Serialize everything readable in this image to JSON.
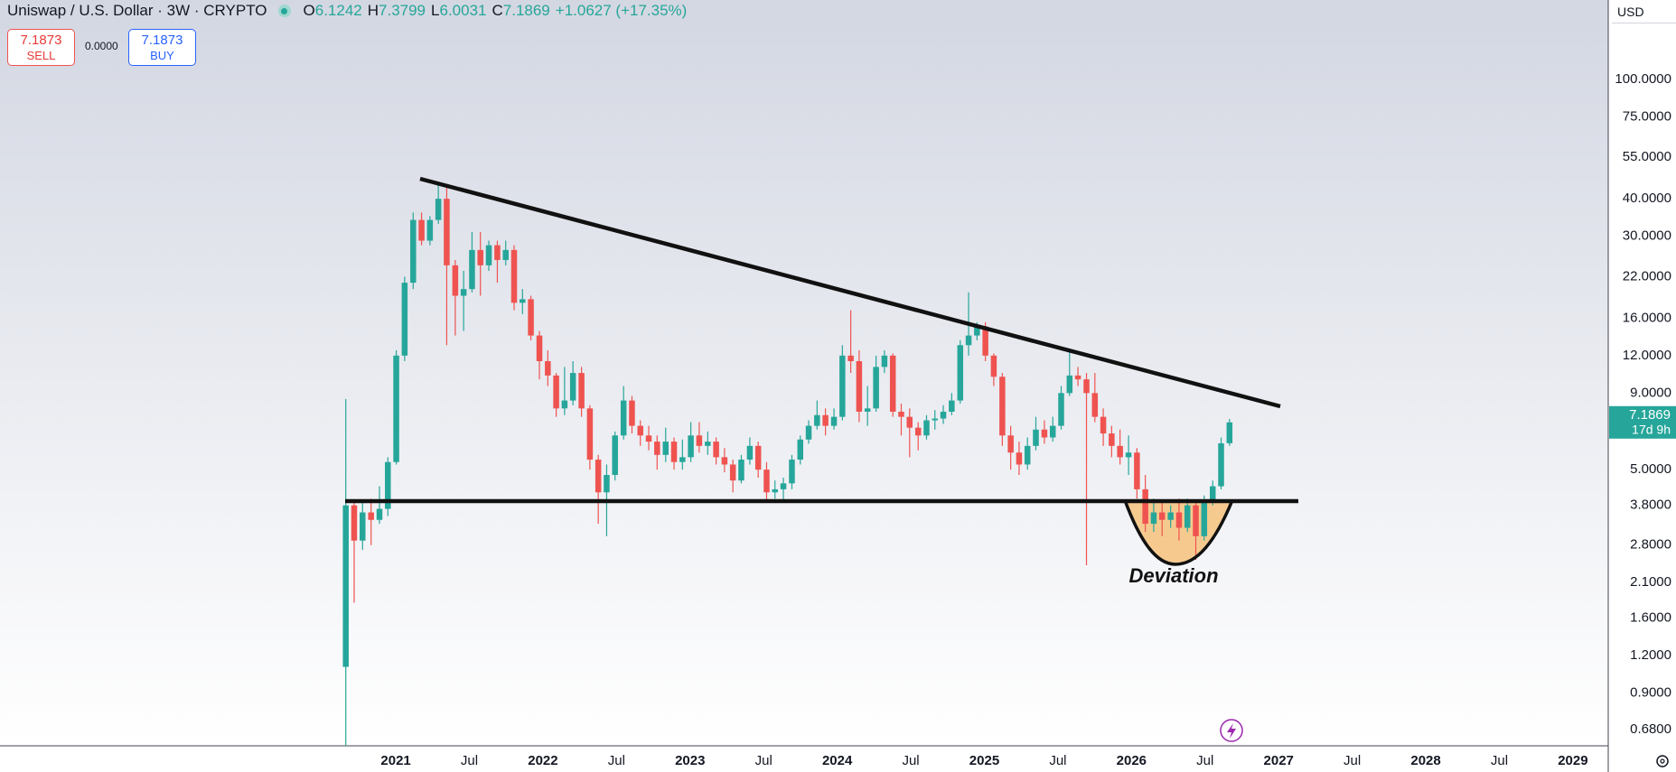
{
  "header": {
    "symbol": "Uniswap / U.S. Dollar · 3W · CRYPTO",
    "open_label": "O",
    "high_label": "H",
    "low_label": "L",
    "close_label": "C",
    "change": "+1.0627 (+17.35%)",
    "sell_price": 7.1873,
    "sell_label": "SELL",
    "spread": "0.0000",
    "buy_price": 7.1873,
    "buy_label": "BUY",
    "currency": "USD",
    "countdown": "17d 9h"
  },
  "chart_data": {
    "type": "candlestick",
    "x": [
      2020.66,
      2020.717,
      2020.774,
      2020.832,
      2020.889,
      2020.946,
      2021.003,
      2021.06,
      2021.118,
      2021.175,
      2021.232,
      2021.289,
      2021.346,
      2021.404,
      2021.461,
      2021.518,
      2021.575,
      2021.632,
      2021.69,
      2021.747,
      2021.804,
      2021.861,
      2021.918,
      2021.976,
      2022.033,
      2022.09,
      2022.147,
      2022.204,
      2022.262,
      2022.319,
      2022.376,
      2022.433,
      2022.49,
      2022.548,
      2022.605,
      2022.662,
      2022.719,
      2022.776,
      2022.834,
      2022.891,
      2022.948,
      2023.005,
      2023.062,
      2023.12,
      2023.177,
      2023.234,
      2023.291,
      2023.348,
      2023.406,
      2023.463,
      2023.52,
      2023.577,
      2023.634,
      2023.692,
      2023.749,
      2023.806,
      2023.863,
      2023.92,
      2023.978,
      2024.035,
      2024.092,
      2024.149,
      2024.206,
      2024.264,
      2024.321,
      2024.378,
      2024.435,
      2024.492,
      2024.55,
      2024.607,
      2024.664,
      2024.721,
      2024.778,
      2024.836,
      2024.893,
      2024.95,
      2025.007,
      2025.064,
      2025.122,
      2025.179,
      2025.236,
      2025.293,
      2025.35,
      2025.408,
      2025.465,
      2025.522,
      2025.579,
      2025.636,
      2025.694,
      2025.751,
      2025.808,
      2025.865,
      2025.922,
      2025.98,
      2026.037,
      2026.094,
      2026.151,
      2026.208,
      2026.266,
      2026.323,
      2026.38,
      2026.437,
      2026.494,
      2026.552,
      2026.609,
      2026.666
    ],
    "open": [
      1.1,
      3.8,
      2.9,
      3.6,
      3.4,
      3.7,
      5.3,
      12,
      21,
      34,
      29,
      34,
      40,
      24,
      19,
      20,
      27,
      24,
      28,
      25,
      27,
      18,
      18.5,
      14,
      11.5,
      10.3,
      8,
      8.5,
      10.5,
      8,
      5.4,
      4.2,
      4.8,
      6.5,
      8.5,
      7,
      6.5,
      6.2,
      5.6,
      6.2,
      5.3,
      5.5,
      6.5,
      6,
      6.2,
      5.5,
      5.2,
      4.6,
      5.4,
      6,
      5,
      4.2,
      4.3,
      4.5,
      5.4,
      6.3,
      7,
      7.6,
      7,
      7.5,
      12,
      11.5,
      7.8,
      8,
      11,
      12,
      7.8,
      7.5,
      6.9,
      6.5,
      7.3,
      7.4,
      7.8,
      8.5,
      13,
      14,
      15,
      12,
      10.2,
      6.5,
      5.7,
      5.2,
      6,
      6.8,
      6.4,
      7,
      9,
      10.3,
      10,
      9,
      7.5,
      6.6,
      6,
      5.5,
      5.7,
      4.3,
      3.3,
      3.6,
      3.4,
      3.6,
      3.2,
      3.8,
      3.0,
      3.9,
      4.4,
      6.1242
    ],
    "high": [
      8.6,
      3.9,
      3.9,
      4.0,
      4.4,
      5.5,
      12.5,
      22,
      36,
      36,
      35,
      45,
      44,
      25,
      23,
      31,
      31,
      29,
      29,
      29,
      28,
      20,
      19,
      14.5,
      12.5,
      10.5,
      11,
      11.5,
      11,
      8.2,
      5.6,
      5.2,
      6.7,
      9.5,
      8.8,
      7.3,
      7,
      6.5,
      6.9,
      6.4,
      6.3,
      7.2,
      7.2,
      6.7,
      6.4,
      5.9,
      5.4,
      5.6,
      6.4,
      6.2,
      5.3,
      4.6,
      4.7,
      5.6,
      6.5,
      7.3,
      8.5,
      8,
      8,
      13,
      17,
      12.5,
      9.5,
      12,
      12.5,
      12.2,
      8.3,
      8,
      7.2,
      7.6,
      7.9,
      8.2,
      9,
      13.5,
      19.5,
      15.5,
      15.5,
      12.2,
      10.5,
      7,
      6.2,
      6.4,
      7.5,
      7.3,
      7.5,
      9.5,
      12.5,
      11,
      10.5,
      10.5,
      8,
      7,
      6.8,
      6.5,
      5.9,
      4.8,
      4.0,
      3.9,
      3.8,
      4.0,
      4.0,
      3.9,
      4.1,
      4.6,
      6.4,
      7.3799
    ],
    "low": [
      0.6,
      1.8,
      2.7,
      2.8,
      3.3,
      3.5,
      5.2,
      11.5,
      20,
      28,
      28,
      33,
      13,
      14,
      14.5,
      19.5,
      19,
      23,
      21,
      24,
      17,
      16.5,
      13.5,
      10,
      9.5,
      7.5,
      7.6,
      8.2,
      7.5,
      5,
      3.3,
      3.0,
      4.6,
      6.3,
      6.6,
      6,
      5.8,
      5,
      5.3,
      5,
      5,
      5.3,
      5.7,
      5.6,
      5.2,
      4.9,
      4.2,
      4.5,
      5.2,
      4.7,
      3.9,
      4.0,
      3.9,
      4.3,
      5.2,
      6.1,
      6.8,
      6.5,
      6.8,
      7.3,
      10.5,
      7.2,
      7.0,
      7.8,
      10.5,
      7.5,
      6.5,
      5.5,
      5.8,
      6.3,
      6.8,
      7.1,
      7.6,
      8.3,
      12,
      13.5,
      11.5,
      9.5,
      6,
      5,
      4.8,
      5,
      5.8,
      6.1,
      6.2,
      6.8,
      8.8,
      9.5,
      2.4,
      7.2,
      6,
      5.5,
      5.2,
      4.8,
      4.0,
      3.1,
      3.1,
      3.0,
      3.2,
      2.9,
      3.1,
      2.5,
      2.9,
      3.8,
      4.3,
      6.0031
    ],
    "close": [
      3.8,
      2.9,
      3.6,
      3.4,
      3.7,
      5.3,
      12,
      21,
      34,
      29,
      34,
      40,
      24,
      19,
      20,
      27,
      24,
      28,
      25,
      27,
      18,
      18.5,
      14,
      11.5,
      10.3,
      8,
      8.5,
      10.5,
      8,
      5.4,
      4.2,
      4.8,
      6.5,
      8.5,
      7,
      6.5,
      6.2,
      5.6,
      6.2,
      5.3,
      5.5,
      6.5,
      6,
      6.2,
      5.5,
      5.2,
      4.6,
      5.4,
      6,
      5,
      4.2,
      4.3,
      4.5,
      5.4,
      6.3,
      7,
      7.6,
      7,
      7.5,
      12,
      11.5,
      7.8,
      8,
      11,
      12,
      7.8,
      7.5,
      6.9,
      6.5,
      7.3,
      7.4,
      7.8,
      8.5,
      13,
      14,
      15,
      12,
      10.2,
      6.5,
      5.7,
      5.2,
      6,
      6.8,
      6.4,
      7,
      9,
      10.3,
      10,
      9,
      7.5,
      6.6,
      6,
      5.5,
      5.7,
      4.3,
      3.3,
      3.6,
      3.4,
      3.6,
      3.2,
      3.8,
      3.0,
      3.9,
      4.4,
      6.12,
      7.1869
    ],
    "up_color": "#26a69a",
    "down_color": "#ef5350",
    "log_scale": true,
    "grid": false,
    "xlim": [
      2018.31,
      2029.24
    ],
    "ylim": [
      0.6,
      184
    ],
    "xticks": [
      2021,
      {
        "value": 2021.5,
        "label": "Jul"
      },
      2022,
      {
        "value": 2022.5,
        "label": "Jul"
      },
      2023,
      {
        "value": 2023.5,
        "label": "Jul"
      },
      2024,
      {
        "value": 2024.5,
        "label": "Jul"
      },
      2025,
      {
        "value": 2025.5,
        "label": "Jul"
      },
      2026,
      {
        "value": 2026.5,
        "label": "Jul"
      },
      2027,
      {
        "value": 2027.5,
        "label": "Jul"
      },
      2028,
      {
        "value": 2028.5,
        "label": "Jul"
      },
      2029
    ],
    "yticks": [
      {
        "value": 100,
        "label": "100.0000"
      },
      {
        "value": 75,
        "label": "75.0000"
      },
      {
        "value": 55,
        "label": "55.0000"
      },
      {
        "value": 40,
        "label": "40.0000"
      },
      {
        "value": 30,
        "label": "30.0000"
      },
      {
        "value": 22,
        "label": "22.0000"
      },
      {
        "value": 16,
        "label": "16.0000"
      },
      {
        "value": 12,
        "label": "12.0000"
      },
      {
        "value": 9,
        "label": "9.0000"
      },
      {
        "value": 5,
        "label": "5.0000"
      },
      {
        "value": 3.8,
        "label": "3.8000"
      },
      {
        "value": 2.8,
        "label": "2.8000"
      },
      {
        "value": 2.1,
        "label": "2.1000"
      },
      {
        "value": 1.6,
        "label": "1.6000"
      },
      {
        "value": 1.2,
        "label": "1.2000"
      },
      {
        "value": 0.9,
        "label": "0.9000"
      },
      {
        "value": 0.68,
        "label": "0.6800"
      }
    ],
    "annotation": "Deviation"
  }
}
